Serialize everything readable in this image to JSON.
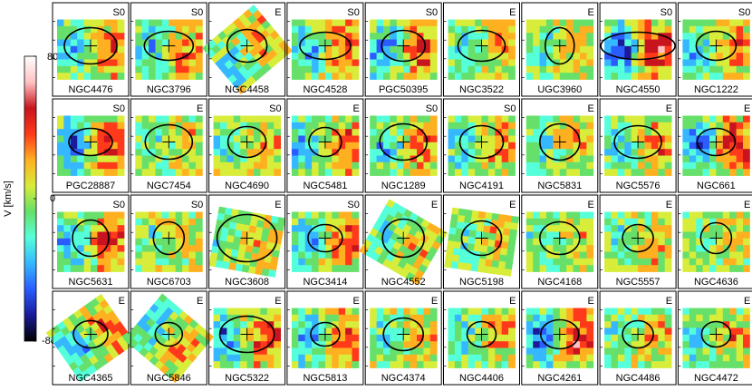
{
  "colorbar": {
    "label": "V [km/s]",
    "ticks": [
      "80",
      "0",
      "-80"
    ],
    "colors": [
      "#000000",
      "#1a1a9a",
      "#2a5cff",
      "#35b8ff",
      "#55ffd9",
      "#66e06a",
      "#d8ec3a",
      "#ffb020",
      "#ff3a1a",
      "#c8141e",
      "#ffc2c2",
      "#ffffff"
    ]
  },
  "panels": [
    {
      "name": "NGC4476",
      "type": "S0"
    },
    {
      "name": "NGC3796",
      "type": "S0"
    },
    {
      "name": "NGC4458",
      "type": "E"
    },
    {
      "name": "NGC4528",
      "type": "S0"
    },
    {
      "name": "PGC50395",
      "type": "S0"
    },
    {
      "name": "NGC3522",
      "type": "E"
    },
    {
      "name": "UGC3960",
      "type": "E"
    },
    {
      "name": "NGC4550",
      "type": "S0"
    },
    {
      "name": "NGC1222",
      "type": "S0"
    },
    {
      "name": "PGC28887",
      "type": "S0"
    },
    {
      "name": "NGC7454",
      "type": "E"
    },
    {
      "name": "NGC4690",
      "type": "S0"
    },
    {
      "name": "NGC5481",
      "type": "E"
    },
    {
      "name": "NGC1289",
      "type": "S0"
    },
    {
      "name": "NGC4191",
      "type": "S0"
    },
    {
      "name": "NGC5831",
      "type": "E"
    },
    {
      "name": "NGC5576",
      "type": "E"
    },
    {
      "name": "NGC661",
      "type": "E"
    },
    {
      "name": "NGC5631",
      "type": "S0"
    },
    {
      "name": "NGC6703",
      "type": "S0"
    },
    {
      "name": "NGC3608",
      "type": "E"
    },
    {
      "name": "NGC3414",
      "type": "S0"
    },
    {
      "name": "NGC4552",
      "type": "E"
    },
    {
      "name": "NGC5198",
      "type": "E"
    },
    {
      "name": "NGC4168",
      "type": "E"
    },
    {
      "name": "NGC5557",
      "type": "E"
    },
    {
      "name": "NGC4636",
      "type": "E"
    },
    {
      "name": "NGC4365",
      "type": "E"
    },
    {
      "name": "NGC5846",
      "type": "E"
    },
    {
      "name": "NGC5322",
      "type": "E"
    },
    {
      "name": "NGC5813",
      "type": "E"
    },
    {
      "name": "NGC4374",
      "type": "E"
    },
    {
      "name": "NGC4406",
      "type": "E"
    },
    {
      "name": "NGC4261",
      "type": "E"
    },
    {
      "name": "NGC4486",
      "type": "E"
    },
    {
      "name": "NGC4472",
      "type": "E"
    }
  ]
}
